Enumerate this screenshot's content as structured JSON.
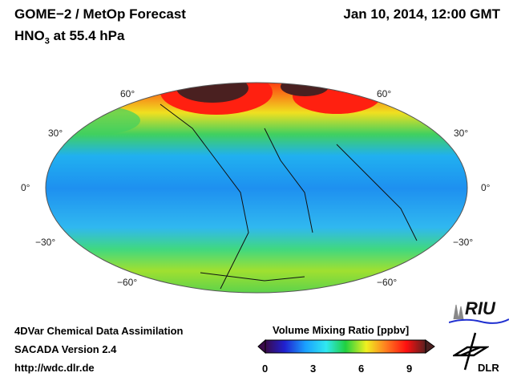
{
  "header": {
    "title": "GOME−2 / MetOp Forecast",
    "species_prefix": "HNO",
    "species_sub": "3",
    "level": " at 55.4 hPa",
    "datetime": "Jan 10, 2014, 12:00 GMT"
  },
  "map": {
    "lat_labels_left": [
      "60°",
      "30°",
      "0°",
      "−30°",
      "−60°"
    ],
    "lat_labels_right": [
      "60°",
      "30°",
      "0°",
      "−30°",
      "−60°"
    ]
  },
  "footer": {
    "line1": "4DVar Chemical Data Assimilation",
    "line2": "SACADA Version 2.4",
    "line3": "http://wdc.dlr.de"
  },
  "colorbar": {
    "title": "Volume Mixing Ratio [ppbv]",
    "ticks": [
      "0",
      "3",
      "6",
      "9"
    ],
    "colors": [
      "#3a0a4a",
      "#2020d0",
      "#1aa0ff",
      "#30e8f0",
      "#20d040",
      "#f0f020",
      "#ff8020",
      "#ff1010",
      "#5a2020"
    ]
  },
  "logos": {
    "riu": "RIU",
    "dlr": "DLR"
  }
}
